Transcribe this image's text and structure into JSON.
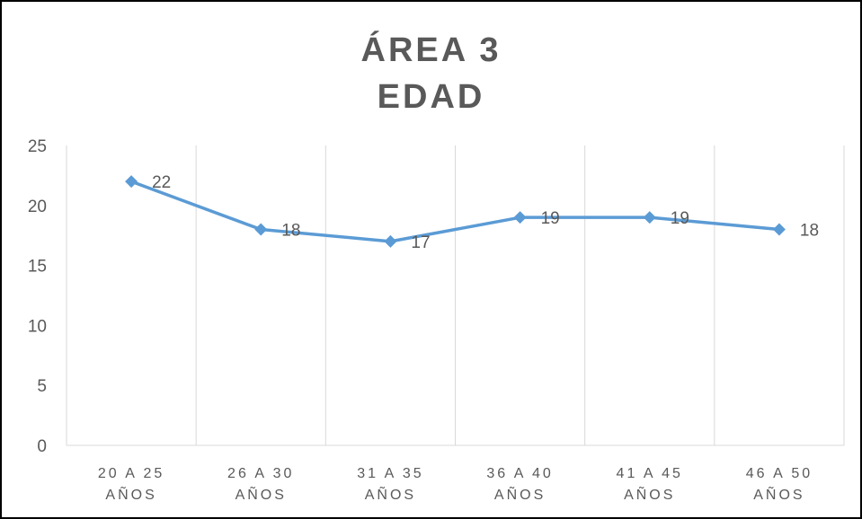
{
  "chart_data": {
    "type": "line",
    "title_lines": [
      "ÁREA 3",
      "EDAD"
    ],
    "categories": [
      [
        "20 A 25",
        "AÑOS"
      ],
      [
        "26 A 30",
        "AÑOS"
      ],
      [
        "31 A 35",
        "AÑOS"
      ],
      [
        "36 A 40",
        "AÑOS"
      ],
      [
        "41 A 45",
        "AÑOS"
      ],
      [
        "46 A 50",
        "AÑOS"
      ]
    ],
    "series": [
      {
        "values": [
          22,
          18,
          17,
          19,
          19,
          18
        ],
        "color": "#5B9BD5"
      }
    ],
    "y_ticks": [
      "0",
      "5",
      "10",
      "15",
      "20",
      "25"
    ],
    "ylim": [
      0,
      25
    ],
    "grid": "vertical",
    "data_labels": true
  }
}
